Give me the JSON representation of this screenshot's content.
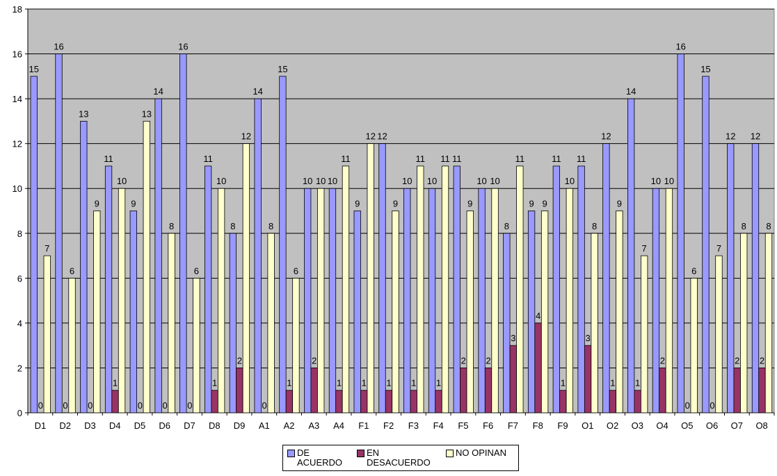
{
  "chart_data": {
    "type": "bar",
    "categories": [
      "D1",
      "D2",
      "D3",
      "D4",
      "D5",
      "D6",
      "D7",
      "D8",
      "D9",
      "A1",
      "A2",
      "A3",
      "A4",
      "F1",
      "F2",
      "F3",
      "F4",
      "F5",
      "F6",
      "F7",
      "F8",
      "F9",
      "O1",
      "O2",
      "O3",
      "O4",
      "O5",
      "O6",
      "O7",
      "O8"
    ],
    "series": [
      {
        "name": "DE ACUERDO",
        "color": "#9999ff",
        "values": [
          15,
          16,
          13,
          11,
          9,
          14,
          16,
          11,
          8,
          14,
          15,
          10,
          10,
          9,
          12,
          10,
          10,
          11,
          10,
          8,
          9,
          11,
          11,
          12,
          14,
          10,
          16,
          15,
          12,
          12
        ]
      },
      {
        "name": "EN DESACUERDO",
        "color": "#993366",
        "values": [
          0,
          0,
          0,
          1,
          0,
          0,
          0,
          1,
          2,
          0,
          1,
          2,
          1,
          1,
          1,
          1,
          1,
          2,
          2,
          3,
          4,
          1,
          3,
          1,
          1,
          2,
          0,
          0,
          2,
          2
        ]
      },
      {
        "name": "NO OPINAN",
        "color": "#ffffcc",
        "values": [
          7,
          6,
          9,
          10,
          13,
          8,
          6,
          10,
          12,
          8,
          6,
          10,
          11,
          12,
          9,
          11,
          11,
          9,
          10,
          11,
          9,
          10,
          8,
          9,
          7,
          10,
          6,
          7,
          8,
          8
        ]
      }
    ],
    "yticks": [
      0,
      2,
      4,
      6,
      8,
      10,
      12,
      14,
      16,
      18
    ],
    "ylim": [
      0,
      18
    ],
    "grid": true,
    "legend_position": "bottom",
    "data_labels": true,
    "plot_background": "#c0c0c0"
  },
  "legend": {
    "items": [
      {
        "text": "DE\nACUERDO",
        "color": "#9999ff"
      },
      {
        "text": "EN\nDESACUERDO",
        "color": "#993366"
      },
      {
        "text": "NO OPINAN",
        "color": "#ffffcc"
      }
    ]
  }
}
